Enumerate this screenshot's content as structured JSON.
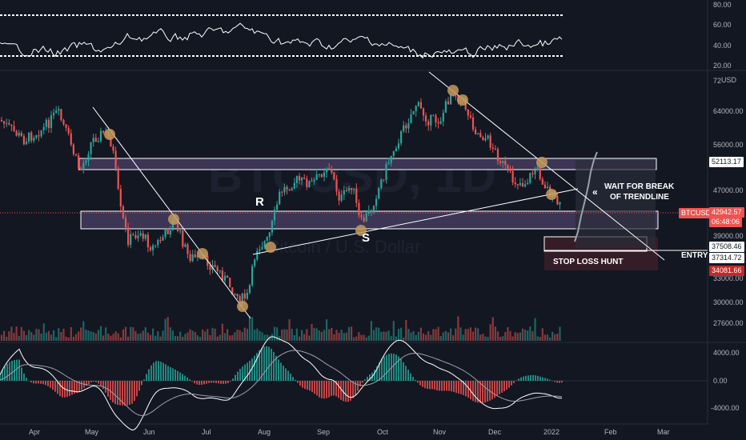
{
  "rsi": {
    "levels": [
      "80.00",
      "60.00",
      "40.00",
      "20.00"
    ]
  },
  "price_axis": {
    "currency": "USD",
    "top_partial": "72",
    "levels": [
      "64000.00",
      "56000.00",
      "47000.00",
      "39000.00",
      "33000.00",
      "30000.00",
      "27600.00"
    ]
  },
  "price_tags": {
    "resistance_value": "52113.17",
    "symbol": "BTCUSD",
    "last_price": "42942.57",
    "countdown": "06:48:06",
    "entry_value": "37508.46",
    "support_value": "37314.72",
    "stop_value": "34081.66"
  },
  "macd_axis": {
    "levels": [
      "4000.00",
      "0.00",
      "-4000.00"
    ]
  },
  "time_axis": {
    "labels": [
      "Apr",
      "May",
      "Jun",
      "Jul",
      "Aug",
      "Sep",
      "Oct",
      "Nov",
      "Dec",
      "2022",
      "Feb",
      "Mar"
    ]
  },
  "annotations": {
    "resistance_letter": "R",
    "support_letter": "S",
    "wait_line1": "WAIT FOR BREAK",
    "wait_line2": "OF TRENDLINE",
    "entry_label": "ENTRY",
    "stop_loss_label": "STOP LOSS HUNT"
  },
  "watermark": {
    "ticker": "BTCUSD, 1D",
    "name": "Bitcoin / U.S. Dollar"
  },
  "colors": {
    "background": "#131722",
    "bull": "#26a69a",
    "bear": "#ef5350",
    "zone_fill": "#3c3554",
    "marker": "#c49a5c",
    "trendline": "#ffffff",
    "macd_line": "#ffffff",
    "signal_line": "#9aa0ab"
  }
}
